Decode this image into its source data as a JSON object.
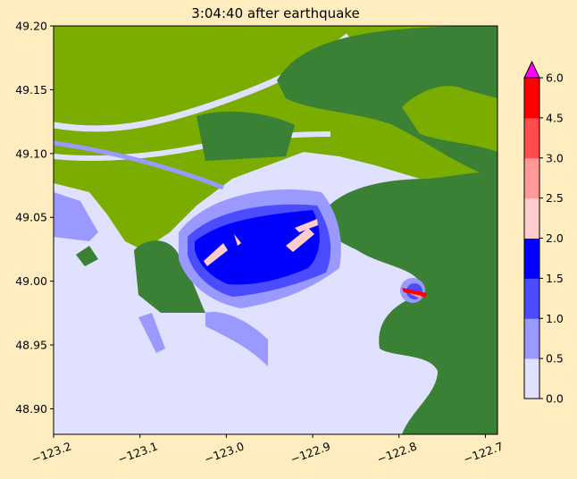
{
  "chart_data": {
    "type": "heatmap",
    "title": "3:04:40 after earthquake",
    "xlabel": "",
    "ylabel": "",
    "xlim": [
      -123.2,
      -122.686
    ],
    "ylim": [
      48.88,
      49.2
    ],
    "x_ticks": [
      "−123.2",
      "−123.1",
      "−123.0",
      "−122.9",
      "−122.8",
      "−122.7"
    ],
    "x_tick_values": [
      -123.2,
      -123.1,
      -123.0,
      -122.9,
      -122.8,
      -122.7
    ],
    "y_ticks": [
      "49.20",
      "49.15",
      "49.10",
      "49.05",
      "49.00",
      "48.95",
      "48.90"
    ],
    "y_tick_values": [
      49.2,
      49.15,
      49.1,
      49.05,
      49.0,
      48.95,
      48.9
    ],
    "colorbar": {
      "levels": [
        0.0,
        0.5,
        1.0,
        1.5,
        2.0,
        2.5,
        3.0,
        4.5,
        6.0
      ],
      "tick_labels": [
        "0.0",
        "0.5",
        "1.0",
        "1.5",
        "2.0",
        "2.5",
        "3.0",
        "4.5",
        "6.0"
      ],
      "colors": [
        "#e0e0ff",
        "#9999ff",
        "#4c4cff",
        "#0000ff",
        "#ffcccc",
        "#ff9999",
        "#ff4c4c",
        "#ff0000"
      ],
      "extend_max_color": "#ff00ff"
    },
    "land_colors": {
      "lowland": "#7aad00",
      "highland": "#3a8035",
      "water": "#e0e0ff"
    }
  }
}
